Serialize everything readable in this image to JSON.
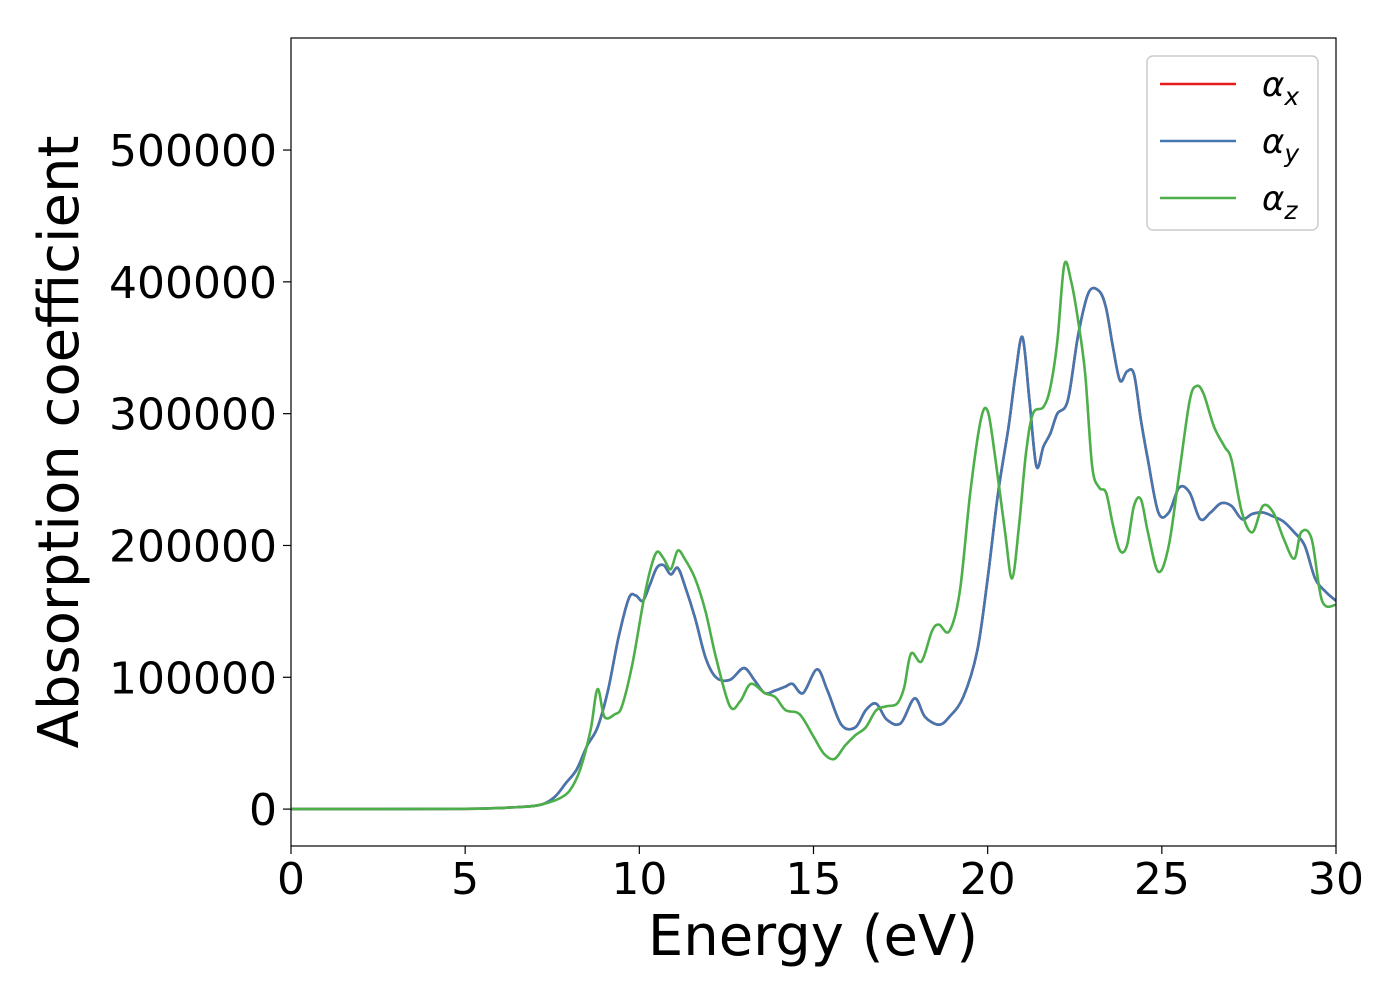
{
  "chart_data": {
    "type": "line",
    "title": "",
    "xlabel": "Energy (eV)",
    "ylabel": "Absorption coefficient",
    "xlim": [
      0,
      30
    ],
    "ylim": [
      -28000,
      585000
    ],
    "xticks": [
      0,
      5,
      10,
      15,
      20,
      25,
      30
    ],
    "yticks": [
      0,
      100000,
      200000,
      300000,
      400000,
      500000
    ],
    "grid": false,
    "legend_position": "top-right",
    "series": [
      {
        "name": "αx",
        "legend_base": "α",
        "legend_sub": "x",
        "color": "#e41a1c",
        "x": [
          0,
          5,
          6.5,
          7,
          7.3,
          7.6,
          7.9,
          8.2,
          8.5,
          8.8,
          9.1,
          9.4,
          9.7,
          9.9,
          10.1,
          10.3,
          10.5,
          10.7,
          10.9,
          11.1,
          11.3,
          11.6,
          11.9,
          12.2,
          12.6,
          13.0,
          13.3,
          13.6,
          13.9,
          14.2,
          14.4,
          14.7,
          15.1,
          15.4,
          15.8,
          16.2,
          16.5,
          16.8,
          17.1,
          17.5,
          17.9,
          18.2,
          18.6,
          18.9,
          19.3,
          19.7,
          20.0,
          20.3,
          20.6,
          20.8,
          21.0,
          21.2,
          21.4,
          21.6,
          21.8,
          22.0,
          22.3,
          22.6,
          22.9,
          23.2,
          23.4,
          23.6,
          23.8,
          24.0,
          24.2,
          24.4,
          24.6,
          24.9,
          25.2,
          25.5,
          25.8,
          26.1,
          26.4,
          26.7,
          27.0,
          27.3,
          27.6,
          27.9,
          28.2,
          28.5,
          28.8,
          29.1,
          29.4,
          29.7,
          30.0
        ],
        "y": [
          0,
          200,
          1500,
          2500,
          4500,
          10000,
          20000,
          30000,
          48000,
          62000,
          90000,
          130000,
          160000,
          162000,
          158000,
          170000,
          183000,
          185000,
          178000,
          183000,
          170000,
          145000,
          115000,
          100000,
          98000,
          107000,
          98000,
          88000,
          90000,
          93000,
          95000,
          88000,
          106000,
          90000,
          64000,
          62000,
          75000,
          80000,
          68000,
          65000,
          84000,
          70000,
          64000,
          70000,
          85000,
          120000,
          175000,
          240000,
          290000,
          330000,
          358000,
          310000,
          260000,
          275000,
          285000,
          300000,
          310000,
          360000,
          392000,
          393000,
          380000,
          350000,
          325000,
          332000,
          330000,
          295000,
          265000,
          225000,
          225000,
          244000,
          240000,
          220000,
          225000,
          232000,
          230000,
          220000,
          224000,
          225000,
          222000,
          218000,
          210000,
          200000,
          175000,
          165000,
          158000
        ]
      },
      {
        "name": "αy",
        "legend_base": "α",
        "legend_sub": "y",
        "color": "#4477b0",
        "x": [
          0,
          5,
          6.5,
          7,
          7.3,
          7.6,
          7.9,
          8.2,
          8.5,
          8.8,
          9.1,
          9.4,
          9.7,
          9.9,
          10.1,
          10.3,
          10.5,
          10.7,
          10.9,
          11.1,
          11.3,
          11.6,
          11.9,
          12.2,
          12.6,
          13.0,
          13.3,
          13.6,
          13.9,
          14.2,
          14.4,
          14.7,
          15.1,
          15.4,
          15.8,
          16.2,
          16.5,
          16.8,
          17.1,
          17.5,
          17.9,
          18.2,
          18.6,
          18.9,
          19.3,
          19.7,
          20.0,
          20.3,
          20.6,
          20.8,
          21.0,
          21.2,
          21.4,
          21.6,
          21.8,
          22.0,
          22.3,
          22.6,
          22.9,
          23.2,
          23.4,
          23.6,
          23.8,
          24.0,
          24.2,
          24.4,
          24.6,
          24.9,
          25.2,
          25.5,
          25.8,
          26.1,
          26.4,
          26.7,
          27.0,
          27.3,
          27.6,
          27.9,
          28.2,
          28.5,
          28.8,
          29.1,
          29.4,
          29.7,
          30.0
        ],
        "y": [
          0,
          200,
          1500,
          2500,
          4500,
          10000,
          20000,
          30000,
          48000,
          62000,
          90000,
          130000,
          160000,
          162000,
          158000,
          170000,
          183000,
          185000,
          178000,
          183000,
          170000,
          145000,
          115000,
          100000,
          98000,
          107000,
          98000,
          88000,
          90000,
          93000,
          95000,
          88000,
          106000,
          90000,
          64000,
          62000,
          75000,
          80000,
          68000,
          65000,
          84000,
          70000,
          64000,
          70000,
          85000,
          120000,
          175000,
          240000,
          290000,
          330000,
          358000,
          310000,
          260000,
          275000,
          285000,
          300000,
          310000,
          360000,
          392000,
          393000,
          380000,
          350000,
          325000,
          332000,
          330000,
          295000,
          265000,
          225000,
          225000,
          244000,
          240000,
          220000,
          225000,
          232000,
          230000,
          220000,
          224000,
          225000,
          222000,
          218000,
          210000,
          200000,
          175000,
          165000,
          158000
        ]
      },
      {
        "name": "αz",
        "legend_base": "α",
        "legend_sub": "z",
        "color": "#4daf4a",
        "x": [
          0,
          5,
          6.5,
          7,
          7.4,
          7.7,
          8.0,
          8.3,
          8.6,
          8.8,
          9.0,
          9.3,
          9.5,
          9.8,
          10.1,
          10.3,
          10.5,
          10.7,
          10.9,
          11.1,
          11.3,
          11.6,
          11.9,
          12.2,
          12.6,
          12.9,
          13.2,
          13.6,
          13.9,
          14.2,
          14.6,
          15.0,
          15.3,
          15.6,
          15.9,
          16.2,
          16.5,
          16.8,
          17.1,
          17.4,
          17.6,
          17.8,
          18.1,
          18.4,
          18.6,
          18.9,
          19.2,
          19.5,
          19.8,
          20.0,
          20.2,
          20.5,
          20.7,
          20.9,
          21.1,
          21.3,
          21.6,
          21.8,
          22.0,
          22.2,
          22.4,
          22.6,
          22.8,
          23.0,
          23.2,
          23.4,
          23.6,
          23.8,
          24.0,
          24.2,
          24.4,
          24.6,
          24.9,
          25.2,
          25.5,
          25.8,
          26.0,
          26.2,
          26.5,
          26.8,
          27.0,
          27.3,
          27.6,
          27.9,
          28.2,
          28.5,
          28.8,
          29.0,
          29.3,
          29.6,
          30.0
        ],
        "y": [
          0,
          200,
          1500,
          2500,
          5000,
          8000,
          14000,
          30000,
          60000,
          91000,
          70000,
          72000,
          78000,
          110000,
          155000,
          180000,
          195000,
          190000,
          182000,
          196000,
          190000,
          175000,
          150000,
          115000,
          78000,
          82000,
          95000,
          88000,
          85000,
          75000,
          72000,
          55000,
          42000,
          38000,
          48000,
          56000,
          62000,
          75000,
          78000,
          80000,
          92000,
          118000,
          112000,
          135000,
          140000,
          135000,
          165000,
          240000,
          295000,
          302000,
          270000,
          210000,
          175000,
          215000,
          270000,
          300000,
          305000,
          320000,
          355000,
          413000,
          400000,
          370000,
          330000,
          260000,
          244000,
          240000,
          215000,
          196000,
          200000,
          230000,
          235000,
          210000,
          180000,
          200000,
          255000,
          310000,
          321000,
          315000,
          290000,
          275000,
          265000,
          225000,
          210000,
          230000,
          225000,
          205000,
          190000,
          210000,
          205000,
          158000,
          155000
        ]
      }
    ]
  }
}
